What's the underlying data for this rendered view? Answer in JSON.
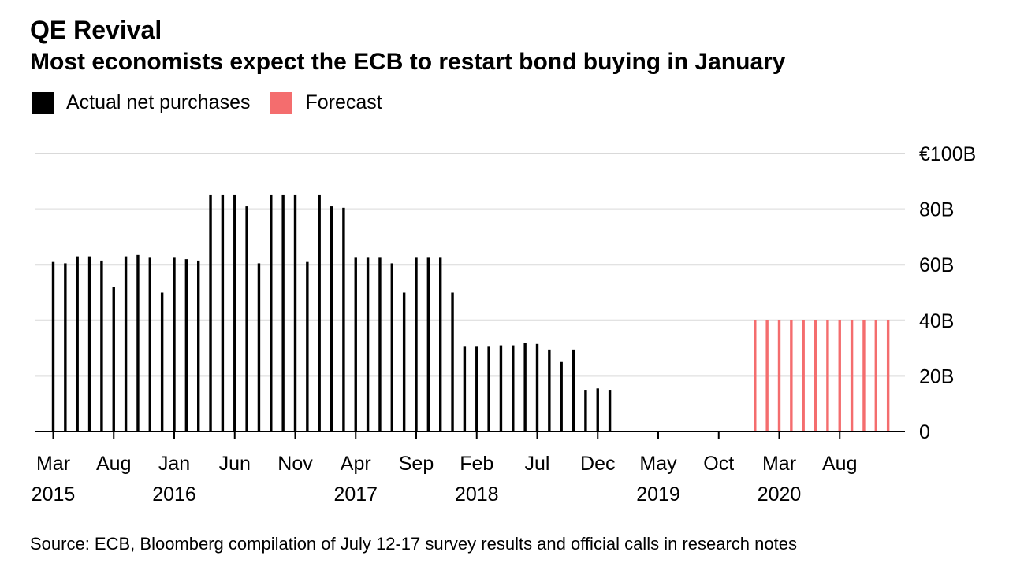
{
  "header": {
    "title": "QE Revival",
    "subtitle": "Most economists expect the ECB to restart bond buying in January"
  },
  "legend": {
    "items": [
      {
        "label": "Actual net purchases",
        "color": "#000000"
      },
      {
        "label": "Forecast",
        "color": "#f46d6e"
      }
    ]
  },
  "footer": {
    "source": "Source: ECB, Bloomberg compilation of July 12-17 survey results and official calls in research notes"
  },
  "chart_data": {
    "type": "bar",
    "title": "QE Revival",
    "subtitle": "Most economists expect the ECB to restart bond buying in January",
    "ylim": [
      0,
      100
    ],
    "yticks": [
      0,
      20,
      40,
      60,
      80,
      100
    ],
    "ytick_labels": [
      "0",
      "20B",
      "40B",
      "60B",
      "80B",
      "€100B"
    ],
    "xticks": [
      {
        "month": "2015-03",
        "label": "Mar",
        "year": "2015"
      },
      {
        "month": "2015-08",
        "label": "Aug",
        "year": ""
      },
      {
        "month": "2016-01",
        "label": "Jan",
        "year": "2016"
      },
      {
        "month": "2016-06",
        "label": "Jun",
        "year": ""
      },
      {
        "month": "2016-11",
        "label": "Nov",
        "year": ""
      },
      {
        "month": "2017-04",
        "label": "Apr",
        "year": "2017"
      },
      {
        "month": "2017-09",
        "label": "Sep",
        "year": ""
      },
      {
        "month": "2018-02",
        "label": "Feb",
        "year": "2018"
      },
      {
        "month": "2018-07",
        "label": "Jul",
        "year": ""
      },
      {
        "month": "2018-12",
        "label": "Dec",
        "year": ""
      },
      {
        "month": "2019-05",
        "label": "May",
        "year": "2019"
      },
      {
        "month": "2019-10",
        "label": "Oct",
        "year": ""
      },
      {
        "month": "2020-03",
        "label": "Mar",
        "year": "2020"
      },
      {
        "month": "2020-08",
        "label": "Aug",
        "year": ""
      }
    ],
    "axis_range": [
      "2015-03",
      "2020-12"
    ],
    "grid": true,
    "legend_position": "top-left",
    "series": [
      {
        "name": "Actual net purchases",
        "color": "#000000",
        "points": [
          {
            "month": "2015-03",
            "value": 61
          },
          {
            "month": "2015-04",
            "value": 60.5
          },
          {
            "month": "2015-05",
            "value": 63
          },
          {
            "month": "2015-06",
            "value": 63
          },
          {
            "month": "2015-07",
            "value": 61.5
          },
          {
            "month": "2015-08",
            "value": 52
          },
          {
            "month": "2015-09",
            "value": 63
          },
          {
            "month": "2015-10",
            "value": 63.5
          },
          {
            "month": "2015-11",
            "value": 62.5
          },
          {
            "month": "2015-12",
            "value": 50
          },
          {
            "month": "2016-01",
            "value": 62.5
          },
          {
            "month": "2016-02",
            "value": 62
          },
          {
            "month": "2016-03",
            "value": 61.5
          },
          {
            "month": "2016-04",
            "value": 85
          },
          {
            "month": "2016-05",
            "value": 85
          },
          {
            "month": "2016-06",
            "value": 85
          },
          {
            "month": "2016-07",
            "value": 81
          },
          {
            "month": "2016-08",
            "value": 60.5
          },
          {
            "month": "2016-09",
            "value": 85
          },
          {
            "month": "2016-10",
            "value": 85
          },
          {
            "month": "2016-11",
            "value": 85
          },
          {
            "month": "2016-12",
            "value": 61
          },
          {
            "month": "2017-01",
            "value": 85
          },
          {
            "month": "2017-02",
            "value": 81
          },
          {
            "month": "2017-03",
            "value": 80.5
          },
          {
            "month": "2017-04",
            "value": 62.5
          },
          {
            "month": "2017-05",
            "value": 62.5
          },
          {
            "month": "2017-06",
            "value": 62.5
          },
          {
            "month": "2017-07",
            "value": 60.5
          },
          {
            "month": "2017-08",
            "value": 50
          },
          {
            "month": "2017-09",
            "value": 62.5
          },
          {
            "month": "2017-10",
            "value": 62.5
          },
          {
            "month": "2017-11",
            "value": 62.5
          },
          {
            "month": "2017-12",
            "value": 50
          },
          {
            "month": "2018-01",
            "value": 30.5
          },
          {
            "month": "2018-02",
            "value": 30.5
          },
          {
            "month": "2018-03",
            "value": 30.5
          },
          {
            "month": "2018-04",
            "value": 31
          },
          {
            "month": "2018-05",
            "value": 31
          },
          {
            "month": "2018-06",
            "value": 32
          },
          {
            "month": "2018-07",
            "value": 31.5
          },
          {
            "month": "2018-08",
            "value": 29.5
          },
          {
            "month": "2018-09",
            "value": 25
          },
          {
            "month": "2018-10",
            "value": 29.5
          },
          {
            "month": "2018-11",
            "value": 15
          },
          {
            "month": "2018-12",
            "value": 15.5
          },
          {
            "month": "2019-01",
            "value": 15
          }
        ]
      },
      {
        "name": "Forecast",
        "color": "#f46d6e",
        "points": [
          {
            "month": "2020-01",
            "value": 40
          },
          {
            "month": "2020-02",
            "value": 40
          },
          {
            "month": "2020-03",
            "value": 40
          },
          {
            "month": "2020-04",
            "value": 40
          },
          {
            "month": "2020-05",
            "value": 40
          },
          {
            "month": "2020-06",
            "value": 40
          },
          {
            "month": "2020-07",
            "value": 40
          },
          {
            "month": "2020-08",
            "value": 40
          },
          {
            "month": "2020-09",
            "value": 40
          },
          {
            "month": "2020-10",
            "value": 40
          },
          {
            "month": "2020-11",
            "value": 40
          },
          {
            "month": "2020-12",
            "value": 40
          }
        ]
      }
    ]
  }
}
